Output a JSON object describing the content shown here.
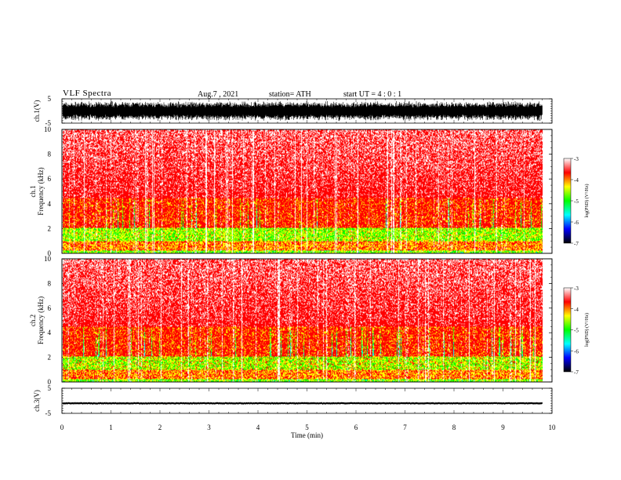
{
  "header": {
    "title": "VLF  Spectra",
    "date": "Aug.7  , 2021",
    "station": "station= ATH",
    "start_ut": "start  UT  =   4  : 0   : 1"
  },
  "colors": {
    "spectrogram_high": "#ff0000",
    "spectrogram_mid": "#ffff00",
    "spectrogram_low": "#00ff00",
    "colorbar": [
      "#000000",
      "#0000ff",
      "#00ffff",
      "#00ff00",
      "#ffff00",
      "#ff0000",
      "#ffffff"
    ],
    "waveform": "#000000"
  },
  "chart_data": [
    {
      "name": "ch1-waveform",
      "type": "line",
      "ylabel": "ch.1(V)",
      "ylim": [
        -5,
        5
      ],
      "yticks": [
        "5",
        "-5"
      ],
      "xlim": [
        0,
        10
      ],
      "description_level": "dense noise saturating about ±4 V over the full 0–9.8 min record"
    },
    {
      "name": "ch1-spectrogram",
      "type": "heatmap",
      "ylabel": "ch.1\nFrequency  (kHz)",
      "ylim": [
        0,
        10
      ],
      "yticks": [
        "0",
        "2",
        "4",
        "6",
        "8",
        "10"
      ],
      "xlim": [
        0,
        10
      ],
      "data_end_min": 9.8,
      "colorbar": {
        "label": "log(PSD) (V²/Hz)",
        "range": [
          -7,
          -3
        ],
        "ticks": [
          "-3",
          "-4",
          "-5",
          "-6",
          "-7"
        ]
      }
    },
    {
      "name": "ch2-spectrogram",
      "type": "heatmap",
      "ylabel": "ch.2\nFrequency  (kHz)",
      "ylim": [
        0,
        10
      ],
      "yticks": [
        "0",
        "2",
        "4",
        "6",
        "8",
        "10"
      ],
      "xlim": [
        0,
        10
      ],
      "data_end_min": 9.8,
      "colorbar": {
        "label": "log(PSD) (V²/Hz)",
        "range": [
          -7,
          -3
        ],
        "ticks": [
          "-3",
          "-4",
          "-5",
          "-6",
          "-7"
        ]
      }
    },
    {
      "name": "ch3-waveform",
      "type": "line",
      "ylabel": "ch.3(V)",
      "ylim": [
        -5,
        5
      ],
      "yticks": [
        "5",
        "-5"
      ],
      "xlim": [
        0,
        10
      ],
      "xlabel": "Time  (min)",
      "xticks": [
        "0",
        "1",
        "2",
        "3",
        "4",
        "5",
        "6",
        "7",
        "8",
        "9",
        "10"
      ],
      "description_level": "flat near -1 V"
    }
  ]
}
